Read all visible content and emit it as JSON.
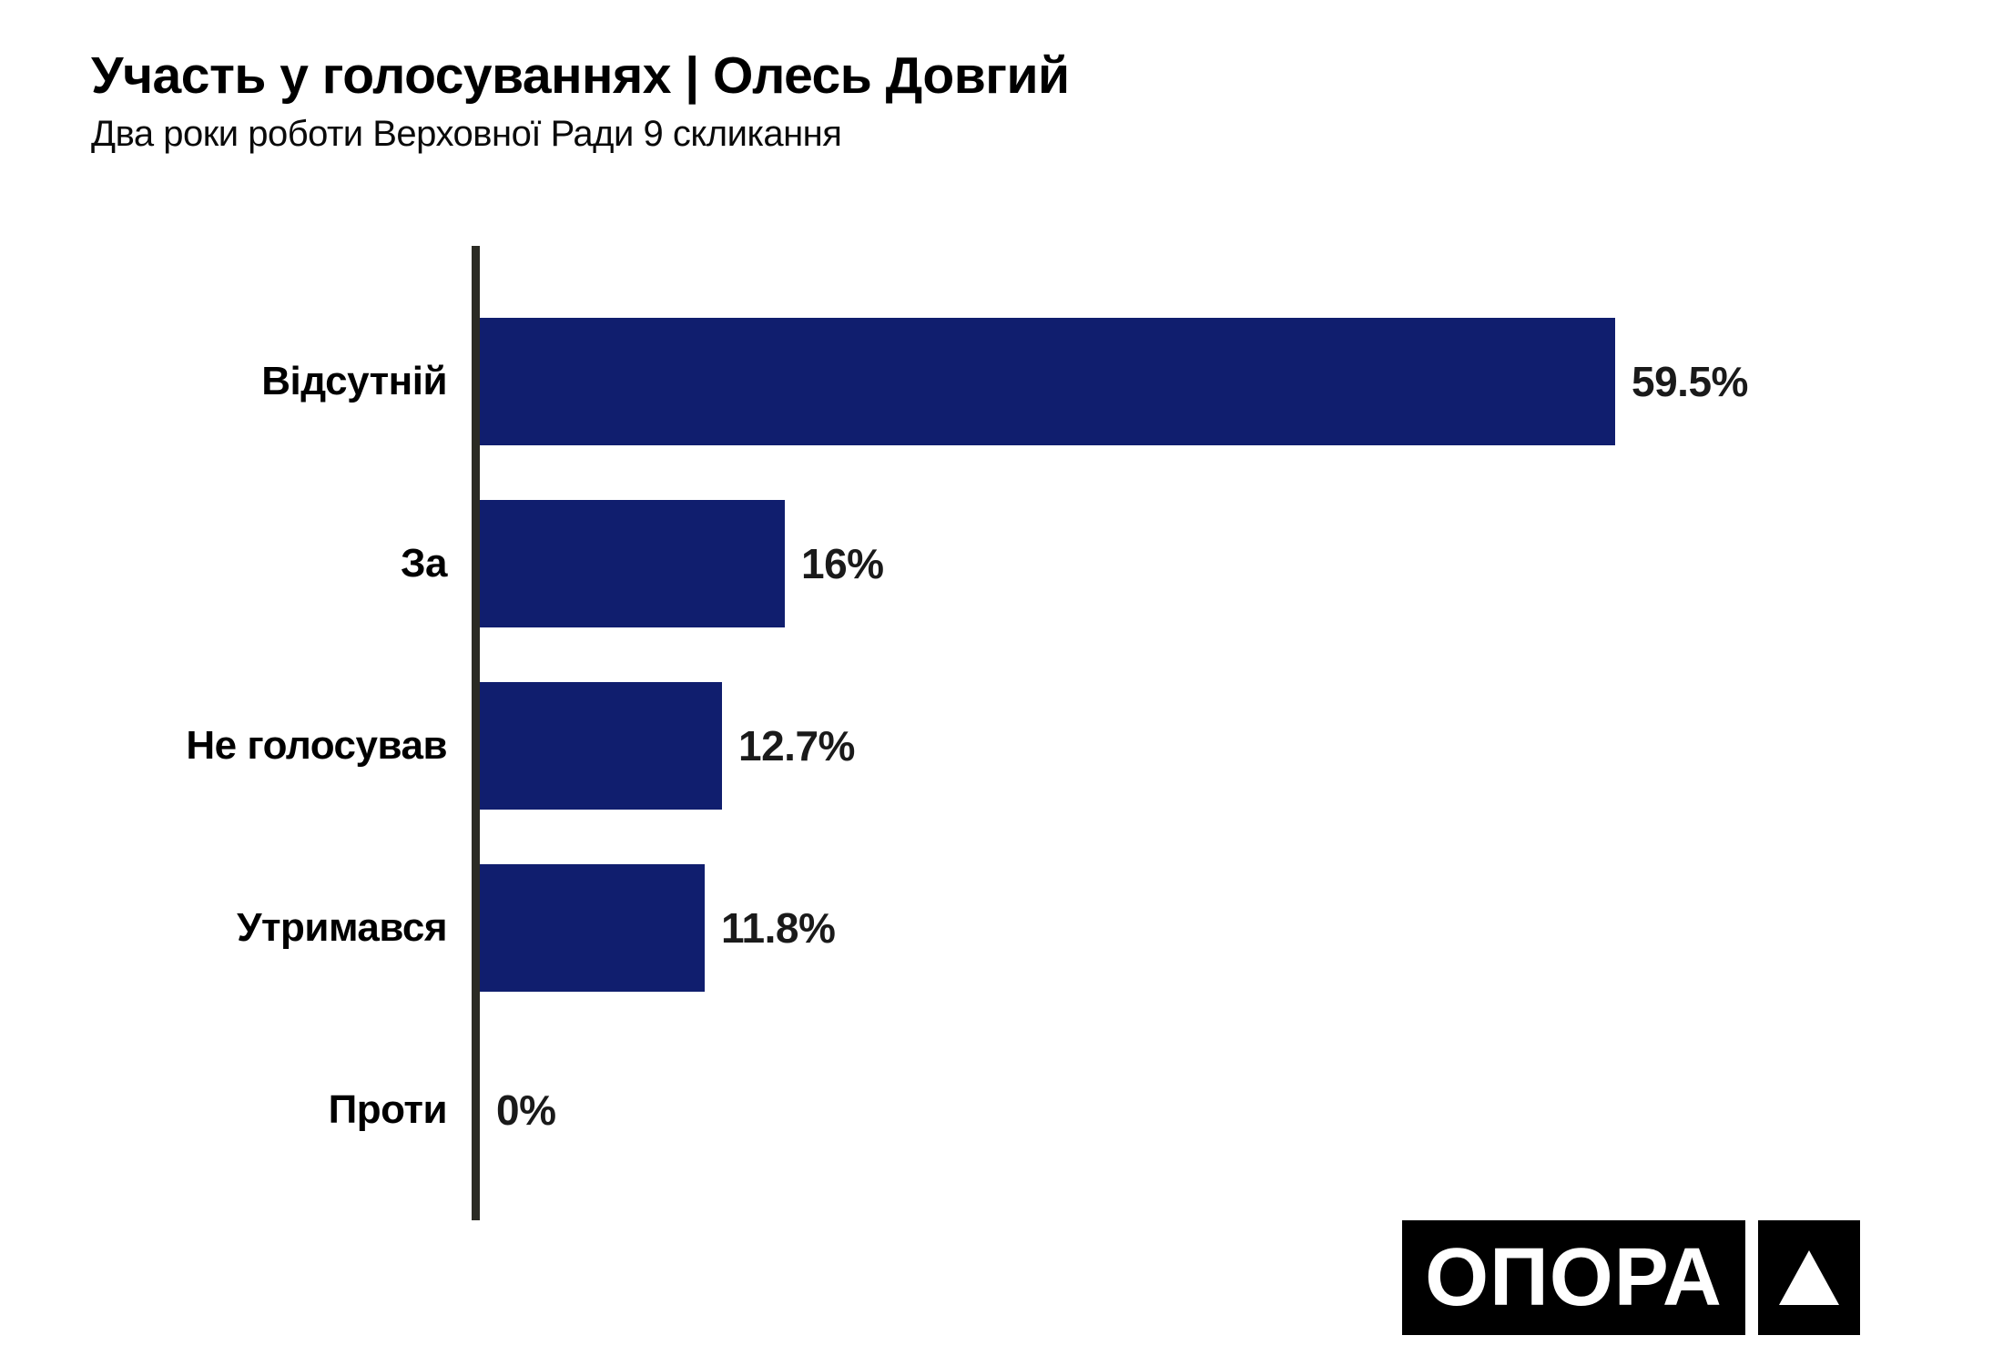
{
  "header": {
    "title": "Участь у голосуваннях | Олесь Довгий",
    "subtitle": "Два роки роботи Верховної Ради 9 скликання"
  },
  "chart_data": {
    "type": "bar",
    "orientation": "horizontal",
    "title": "Участь у голосуваннях | Олесь Довгий",
    "subtitle": "Два роки роботи Верховної Ради 9 скликання",
    "categories": [
      "Відсутній",
      "За",
      "Не голосував",
      "Утримався",
      "Проти"
    ],
    "values": [
      59.5,
      16,
      12.7,
      11.8,
      0
    ],
    "value_labels": [
      "59.5%",
      "16%",
      "12.7%",
      "11.8%",
      "0%"
    ],
    "xlim": [
      0,
      62
    ],
    "grid": false,
    "legend": false,
    "value_labels_position": "right-of-bar"
  },
  "logo": {
    "text": "ОПОРА",
    "mark": "triangle"
  },
  "colors": {
    "background": "#ffffff",
    "bar": "#101e6e",
    "axis": "#2b2b24",
    "title_text": "#000000",
    "value_text": "#1a1a1a",
    "logo_bg": "#000000",
    "logo_fg": "#ffffff"
  }
}
